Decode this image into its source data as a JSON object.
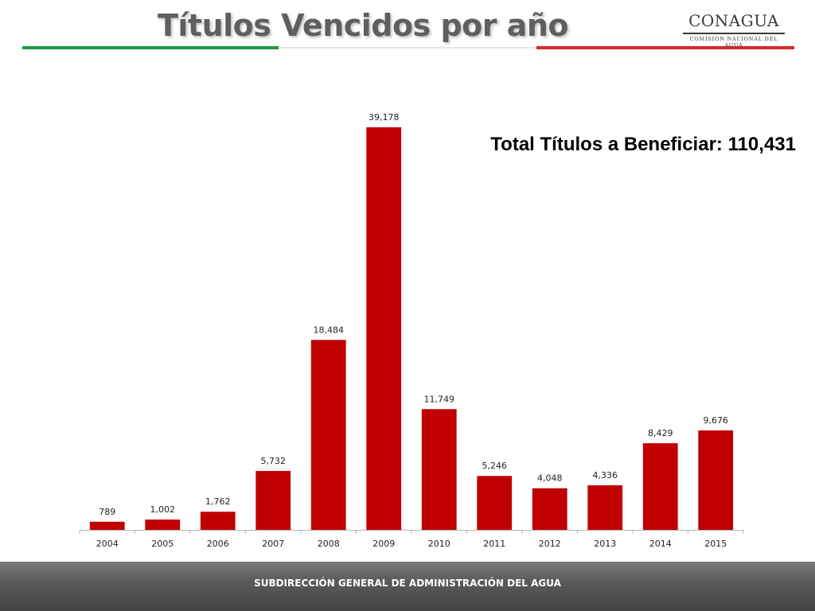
{
  "slide": {
    "title": "Títulos Vencidos por año",
    "note": "Total Títulos a Beneficiar: 110,431",
    "footer": "SUBDIRECCIÓN GENERAL DE ADMINISTRACIÓN DEL AGUA"
  },
  "logo": {
    "name": "CONAGUA",
    "subtitle": "COMISIÓN NACIONAL DEL AGUA"
  },
  "colors": {
    "bar": "#c00000",
    "title": "#5f5f5f",
    "rule_green": "#1e9a4a",
    "rule_red": "#d7282f"
  },
  "chart_data": {
    "type": "bar",
    "categories": [
      "2004",
      "2005",
      "2006",
      "2007",
      "2008",
      "2009",
      "2010",
      "2011",
      "2012",
      "2013",
      "2014",
      "2015"
    ],
    "values": [
      789,
      1002,
      1762,
      5732,
      18484,
      39178,
      11749,
      5246,
      4048,
      4336,
      8429,
      9676
    ],
    "data_labels": [
      "789",
      "1,002",
      "1,762",
      "5,732",
      "18,484",
      "39,178",
      "11,749",
      "5,246",
      "4,048",
      "4,336",
      "8,429",
      "9,676"
    ],
    "ylim": [
      0,
      39178
    ],
    "grid": false,
    "legend": "none"
  }
}
